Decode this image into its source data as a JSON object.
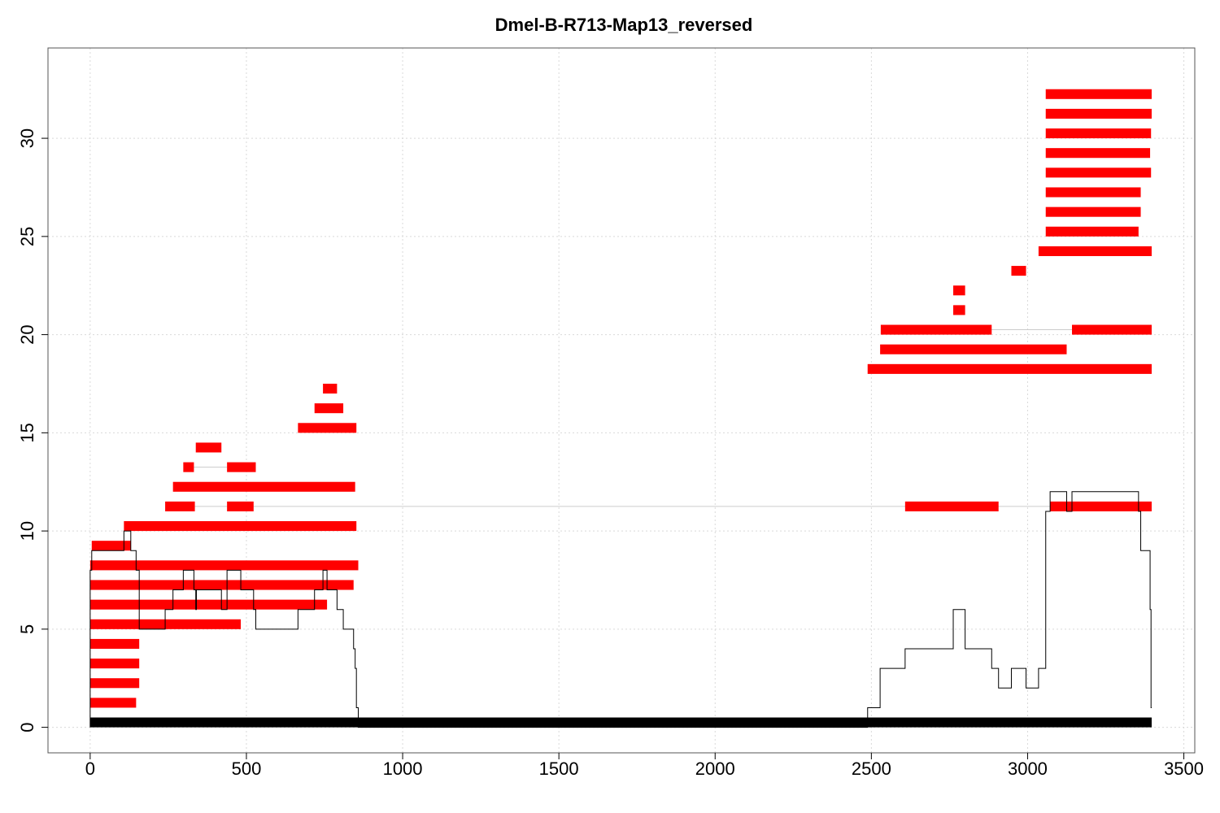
{
  "chart_data": {
    "type": "bar",
    "title": "Dmel-B-R713-Map13_reversed",
    "xlabel": "",
    "ylabel": "",
    "xlim": [
      -135,
      3535
    ],
    "ylim": [
      -1.3,
      34.6
    ],
    "x_ticks": [
      0,
      500,
      1000,
      1500,
      2000,
      2500,
      3000,
      3500
    ],
    "y_ticks": [
      0,
      5,
      10,
      15,
      20,
      25,
      30
    ],
    "grid": true,
    "colors": {
      "segment": "#ff0000",
      "coverage": "#000000",
      "base": "#000000",
      "link": "#cccccc",
      "grid": "#d9d9d9"
    },
    "base_bar": {
      "x_start": 0,
      "x_end": 3397,
      "y": 0.25,
      "height": 0.5
    },
    "segments": [
      {
        "row": 1,
        "x_start": 0,
        "x_end": 147
      },
      {
        "row": 2,
        "x_start": 0,
        "x_end": 157
      },
      {
        "row": 3,
        "x_start": 0,
        "x_end": 157
      },
      {
        "row": 4,
        "x_start": 0,
        "x_end": 157
      },
      {
        "row": 5,
        "x_start": 0,
        "x_end": 482
      },
      {
        "row": 6,
        "x_start": 0,
        "x_end": 758
      },
      {
        "row": 7,
        "x_start": 0,
        "x_end": 843
      },
      {
        "row": 8,
        "x_start": 0,
        "x_end": 858
      },
      {
        "row": 9,
        "x_start": 5,
        "x_end": 130
      },
      {
        "row": 10,
        "x_start": 108,
        "x_end": 852
      },
      {
        "row": 11,
        "x_start": 240,
        "x_end": 335
      },
      {
        "row": 11,
        "x_start": 438,
        "x_end": 523
      },
      {
        "row": 11,
        "x_start": 2608,
        "x_end": 2907
      },
      {
        "row": 11,
        "x_start": 3072,
        "x_end": 3397
      },
      {
        "row": 12,
        "x_start": 265,
        "x_end": 848
      },
      {
        "row": 13,
        "x_start": 298,
        "x_end": 332
      },
      {
        "row": 13,
        "x_start": 438,
        "x_end": 530
      },
      {
        "row": 14,
        "x_start": 338,
        "x_end": 420
      },
      {
        "row": 15,
        "x_start": 665,
        "x_end": 852
      },
      {
        "row": 16,
        "x_start": 718,
        "x_end": 810
      },
      {
        "row": 17,
        "x_start": 745,
        "x_end": 790
      },
      {
        "row": 18,
        "x_start": 2488,
        "x_end": 3397
      },
      {
        "row": 19,
        "x_start": 2528,
        "x_end": 3125
      },
      {
        "row": 20,
        "x_start": 2530,
        "x_end": 2885
      },
      {
        "row": 20,
        "x_start": 3142,
        "x_end": 3397
      },
      {
        "row": 21,
        "x_start": 2762,
        "x_end": 2800
      },
      {
        "row": 22,
        "x_start": 2762,
        "x_end": 2800
      },
      {
        "row": 23,
        "x_start": 2948,
        "x_end": 2995
      },
      {
        "row": 24,
        "x_start": 3035,
        "x_end": 3397
      },
      {
        "row": 25,
        "x_start": 3058,
        "x_end": 3355
      },
      {
        "row": 26,
        "x_start": 3058,
        "x_end": 3362
      },
      {
        "row": 27,
        "x_start": 3058,
        "x_end": 3362
      },
      {
        "row": 28,
        "x_start": 3058,
        "x_end": 3395
      },
      {
        "row": 29,
        "x_start": 3058,
        "x_end": 3392
      },
      {
        "row": 30,
        "x_start": 3058,
        "x_end": 3395
      },
      {
        "row": 31,
        "x_start": 3058,
        "x_end": 3397
      },
      {
        "row": 32,
        "x_start": 3058,
        "x_end": 3397
      }
    ],
    "links": [
      {
        "row": 11,
        "x_start": 335,
        "x_end": 3072
      },
      {
        "row": 13,
        "x_start": 332,
        "x_end": 438
      },
      {
        "row": 20,
        "x_start": 2885,
        "x_end": 3142
      }
    ],
    "coverage": [
      [
        0,
        0
      ],
      [
        0,
        8
      ],
      [
        5,
        8
      ],
      [
        5,
        9
      ],
      [
        108,
        9
      ],
      [
        108,
        10
      ],
      [
        130,
        10
      ],
      [
        130,
        9
      ],
      [
        147,
        9
      ],
      [
        147,
        8
      ],
      [
        157,
        8
      ],
      [
        157,
        5
      ],
      [
        240,
        5
      ],
      [
        240,
        6
      ],
      [
        265,
        6
      ],
      [
        265,
        7
      ],
      [
        298,
        7
      ],
      [
        298,
        8
      ],
      [
        332,
        8
      ],
      [
        332,
        7
      ],
      [
        338,
        7
      ],
      [
        338,
        6
      ],
      [
        340,
        6
      ],
      [
        340,
        7
      ],
      [
        420,
        7
      ],
      [
        420,
        6
      ],
      [
        438,
        6
      ],
      [
        438,
        8
      ],
      [
        482,
        8
      ],
      [
        482,
        7
      ],
      [
        523,
        7
      ],
      [
        523,
        6
      ],
      [
        530,
        6
      ],
      [
        530,
        5
      ],
      [
        665,
        5
      ],
      [
        665,
        6
      ],
      [
        718,
        6
      ],
      [
        718,
        7
      ],
      [
        745,
        7
      ],
      [
        745,
        8
      ],
      [
        758,
        8
      ],
      [
        758,
        7
      ],
      [
        790,
        7
      ],
      [
        790,
        6
      ],
      [
        810,
        6
      ],
      [
        810,
        5
      ],
      [
        843,
        5
      ],
      [
        843,
        4
      ],
      [
        848,
        4
      ],
      [
        848,
        3
      ],
      [
        852,
        3
      ],
      [
        852,
        1
      ],
      [
        858,
        1
      ],
      [
        858,
        0
      ],
      [
        2488,
        0
      ],
      [
        2488,
        1
      ],
      [
        2528,
        1
      ],
      [
        2528,
        3
      ],
      [
        2608,
        3
      ],
      [
        2608,
        4
      ],
      [
        2762,
        4
      ],
      [
        2762,
        6
      ],
      [
        2800,
        6
      ],
      [
        2800,
        4
      ],
      [
        2885,
        4
      ],
      [
        2885,
        3
      ],
      [
        2907,
        3
      ],
      [
        2907,
        2
      ],
      [
        2948,
        2
      ],
      [
        2948,
        3
      ],
      [
        2995,
        3
      ],
      [
        2995,
        2
      ],
      [
        3035,
        2
      ],
      [
        3035,
        3
      ],
      [
        3058,
        3
      ],
      [
        3058,
        11
      ],
      [
        3072,
        11
      ],
      [
        3072,
        12
      ],
      [
        3125,
        12
      ],
      [
        3125,
        11
      ],
      [
        3142,
        11
      ],
      [
        3142,
        12
      ],
      [
        3355,
        12
      ],
      [
        3355,
        11
      ],
      [
        3362,
        11
      ],
      [
        3362,
        9
      ],
      [
        3392,
        9
      ],
      [
        3392,
        6
      ],
      [
        3395,
        6
      ],
      [
        3395,
        1
      ],
      [
        3397,
        1
      ]
    ]
  }
}
